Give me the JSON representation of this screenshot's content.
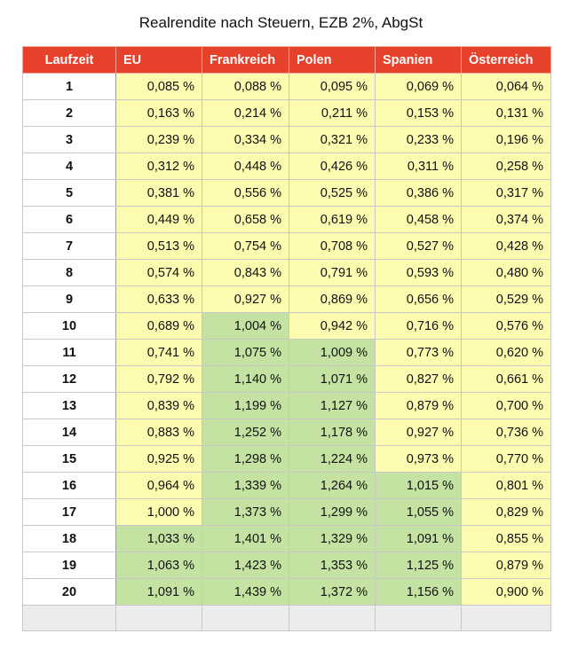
{
  "title": "Realrendite nach Steuern, EZB 2%, AbgSt",
  "header_color": "#e5412b",
  "table": {
    "header": [
      "Laufzeit",
      "EU",
      "Frankreich",
      "Polen",
      "Spanien",
      "Österreich"
    ],
    "rows": [
      {
        "cells": [
          "1",
          "0,085 %",
          "0,088 %",
          "0,095 %",
          "0,069 %",
          "0,064 %"
        ],
        "fills": [
          "#fdfbb0",
          "#fdfbb0",
          "#fdfbb0",
          "#fdfbb0",
          "#fdfbb0"
        ]
      },
      {
        "cells": [
          "2",
          "0,163 %",
          "0,214 %",
          "0,211 %",
          "0,153 %",
          "0,131 %"
        ],
        "fills": [
          "#fdfbb0",
          "#fdfbb0",
          "#fdfbb0",
          "#fdfbb0",
          "#fdfbb0"
        ]
      },
      {
        "cells": [
          "3",
          "0,239 %",
          "0,334 %",
          "0,321 %",
          "0,233 %",
          "0,196 %"
        ],
        "fills": [
          "#fdfbb0",
          "#fdfbb0",
          "#fdfbb0",
          "#fdfbb0",
          "#fdfbb0"
        ]
      },
      {
        "cells": [
          "4",
          "0,312 %",
          "0,448 %",
          "0,426 %",
          "0,311 %",
          "0,258 %"
        ],
        "fills": [
          "#fdfbb0",
          "#fdfbb0",
          "#fdfbb0",
          "#fdfbb0",
          "#fdfbb0"
        ]
      },
      {
        "cells": [
          "5",
          "0,381 %",
          "0,556 %",
          "0,525 %",
          "0,386 %",
          "0,317 %"
        ],
        "fills": [
          "#fdfbb0",
          "#fdfbb0",
          "#fdfbb0",
          "#fdfbb0",
          "#fdfbb0"
        ]
      },
      {
        "cells": [
          "6",
          "0,449 %",
          "0,658 %",
          "0,619 %",
          "0,458 %",
          "0,374 %"
        ],
        "fills": [
          "#fdfbb0",
          "#fdfbb0",
          "#fdfbb0",
          "#fdfbb0",
          "#fdfbb0"
        ]
      },
      {
        "cells": [
          "7",
          "0,513 %",
          "0,754 %",
          "0,708 %",
          "0,527 %",
          "0,428 %"
        ],
        "fills": [
          "#fdfbb0",
          "#fdfbb0",
          "#fdfbb0",
          "#fdfbb0",
          "#fdfbb0"
        ]
      },
      {
        "cells": [
          "8",
          "0,574 %",
          "0,843 %",
          "0,791 %",
          "0,593 %",
          "0,480 %"
        ],
        "fills": [
          "#fdfbb0",
          "#fdfbb0",
          "#fdfbb0",
          "#fdfbb0",
          "#fdfbb0"
        ]
      },
      {
        "cells": [
          "9",
          "0,633 %",
          "0,927 %",
          "0,869 %",
          "0,656 %",
          "0,529 %"
        ],
        "fills": [
          "#fdfbb0",
          "#fdfbb0",
          "#fdfbb0",
          "#fdfbb0",
          "#fdfbb0"
        ]
      },
      {
        "cells": [
          "10",
          "0,689 %",
          "1,004 %",
          "0,942 %",
          "0,716 %",
          "0,576 %"
        ],
        "fills": [
          "#fdfbb0",
          "#c4e3a2",
          "#fdfbb0",
          "#fdfbb0",
          "#fdfbb0"
        ]
      },
      {
        "cells": [
          "11",
          "0,741 %",
          "1,075 %",
          "1,009 %",
          "0,773 %",
          "0,620 %"
        ],
        "fills": [
          "#fdfbb0",
          "#c4e3a2",
          "#c4e3a2",
          "#fdfbb0",
          "#fdfbb0"
        ]
      },
      {
        "cells": [
          "12",
          "0,792 %",
          "1,140 %",
          "1,071 %",
          "0,827 %",
          "0,661 %"
        ],
        "fills": [
          "#fdfbb0",
          "#c4e3a2",
          "#c4e3a2",
          "#fdfbb0",
          "#fdfbb0"
        ]
      },
      {
        "cells": [
          "13",
          "0,839 %",
          "1,199 %",
          "1,127 %",
          "0,879 %",
          "0,700 %"
        ],
        "fills": [
          "#fdfbb0",
          "#c4e3a2",
          "#c4e3a2",
          "#fdfbb0",
          "#fdfbb0"
        ]
      },
      {
        "cells": [
          "14",
          "0,883 %",
          "1,252 %",
          "1,178 %",
          "0,927 %",
          "0,736 %"
        ],
        "fills": [
          "#fdfbb0",
          "#c4e3a2",
          "#c4e3a2",
          "#fdfbb0",
          "#fdfbb0"
        ]
      },
      {
        "cells": [
          "15",
          "0,925 %",
          "1,298 %",
          "1,224 %",
          "0,973 %",
          "0,770 %"
        ],
        "fills": [
          "#fdfbb0",
          "#c4e3a2",
          "#c4e3a2",
          "#fdfbb0",
          "#fdfbb0"
        ]
      },
      {
        "cells": [
          "16",
          "0,964 %",
          "1,339 %",
          "1,264 %",
          "1,015 %",
          "0,801 %"
        ],
        "fills": [
          "#fdfbb0",
          "#c4e3a2",
          "#c4e3a2",
          "#c4e3a2",
          "#fdfbb0"
        ]
      },
      {
        "cells": [
          "17",
          "1,000 %",
          "1,373 %",
          "1,299 %",
          "1,055 %",
          "0,829 %"
        ],
        "fills": [
          "#fdfbb0",
          "#c4e3a2",
          "#c4e3a2",
          "#c4e3a2",
          "#fdfbb0"
        ]
      },
      {
        "cells": [
          "18",
          "1,033 %",
          "1,401 %",
          "1,329 %",
          "1,091 %",
          "0,855 %"
        ],
        "fills": [
          "#c4e3a2",
          "#c4e3a2",
          "#c4e3a2",
          "#c4e3a2",
          "#fdfbb0"
        ]
      },
      {
        "cells": [
          "19",
          "1,063 %",
          "1,423 %",
          "1,353 %",
          "1,125 %",
          "0,879 %"
        ],
        "fills": [
          "#c4e3a2",
          "#c4e3a2",
          "#c4e3a2",
          "#c4e3a2",
          "#fdfbb0"
        ]
      },
      {
        "cells": [
          "20",
          "1,091 %",
          "1,439 %",
          "1,372 %",
          "1,156 %",
          "0,900 %"
        ],
        "fills": [
          "#c4e3a2",
          "#c4e3a2",
          "#c4e3a2",
          "#c4e3a2",
          "#fdfbb0"
        ]
      }
    ]
  }
}
